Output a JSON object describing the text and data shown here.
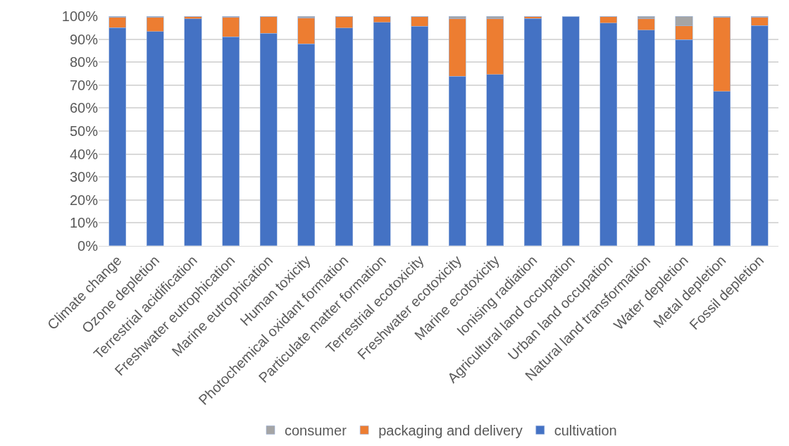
{
  "chart_data": {
    "type": "bar",
    "stacked": true,
    "categories": [
      "Climate change",
      "Ozone depletion",
      "Terrestrial acidification",
      "Freshwater eutrophication",
      "Marine eutrophication",
      "Human toxicity",
      "Photochemical oxidant formation",
      "Particulate matter formation",
      "Terrestrial ecotoxicity",
      "Freshwater ecotoxicity",
      "Marine ecotoxicity",
      "Ionising radiation",
      "Agricultural land occupation",
      "Urban land occupation",
      "Natural land transformation",
      "Water depletion",
      "Metal depletion",
      "Fossil depletion"
    ],
    "series": [
      {
        "name": "cultivation",
        "color": "#4472c4",
        "values": [
          95,
          93.3,
          98.9,
          91,
          92.5,
          88,
          94.8,
          97.3,
          95.7,
          73.8,
          74.6,
          99,
          99.9,
          97,
          94,
          89.8,
          67.3,
          96
        ]
      },
      {
        "name": "packaging and delivery",
        "color": "#ed7d31",
        "values": [
          4.5,
          6.2,
          0.9,
          8.6,
          7.2,
          11.3,
          4.9,
          2.5,
          4.1,
          25.2,
          24.4,
          0.8,
          0.1,
          2.8,
          5,
          6,
          32.2,
          3.6
        ]
      },
      {
        "name": "consumer",
        "color": "#a5a5a5",
        "values": [
          0.5,
          0.5,
          0.2,
          0.4,
          0.3,
          0.7,
          0.3,
          0.2,
          0.2,
          1,
          1,
          0.2,
          0,
          0.2,
          1,
          4.2,
          0.5,
          0.4
        ]
      }
    ],
    "ylim": [
      0,
      100
    ],
    "yticks": [
      {
        "value": 0,
        "label": "0%"
      },
      {
        "value": 10,
        "label": "10%"
      },
      {
        "value": 20,
        "label": "20%"
      },
      {
        "value": 30,
        "label": "30%"
      },
      {
        "value": 40,
        "label": "40%"
      },
      {
        "value": 50,
        "label": "50%"
      },
      {
        "value": 60,
        "label": "60%"
      },
      {
        "value": 70,
        "label": "70%"
      },
      {
        "value": 80,
        "label": "80%"
      },
      {
        "value": 90,
        "label": "90%"
      },
      {
        "value": 100,
        "label": "100%"
      }
    ],
    "grid": "y",
    "legend": "bottom"
  }
}
